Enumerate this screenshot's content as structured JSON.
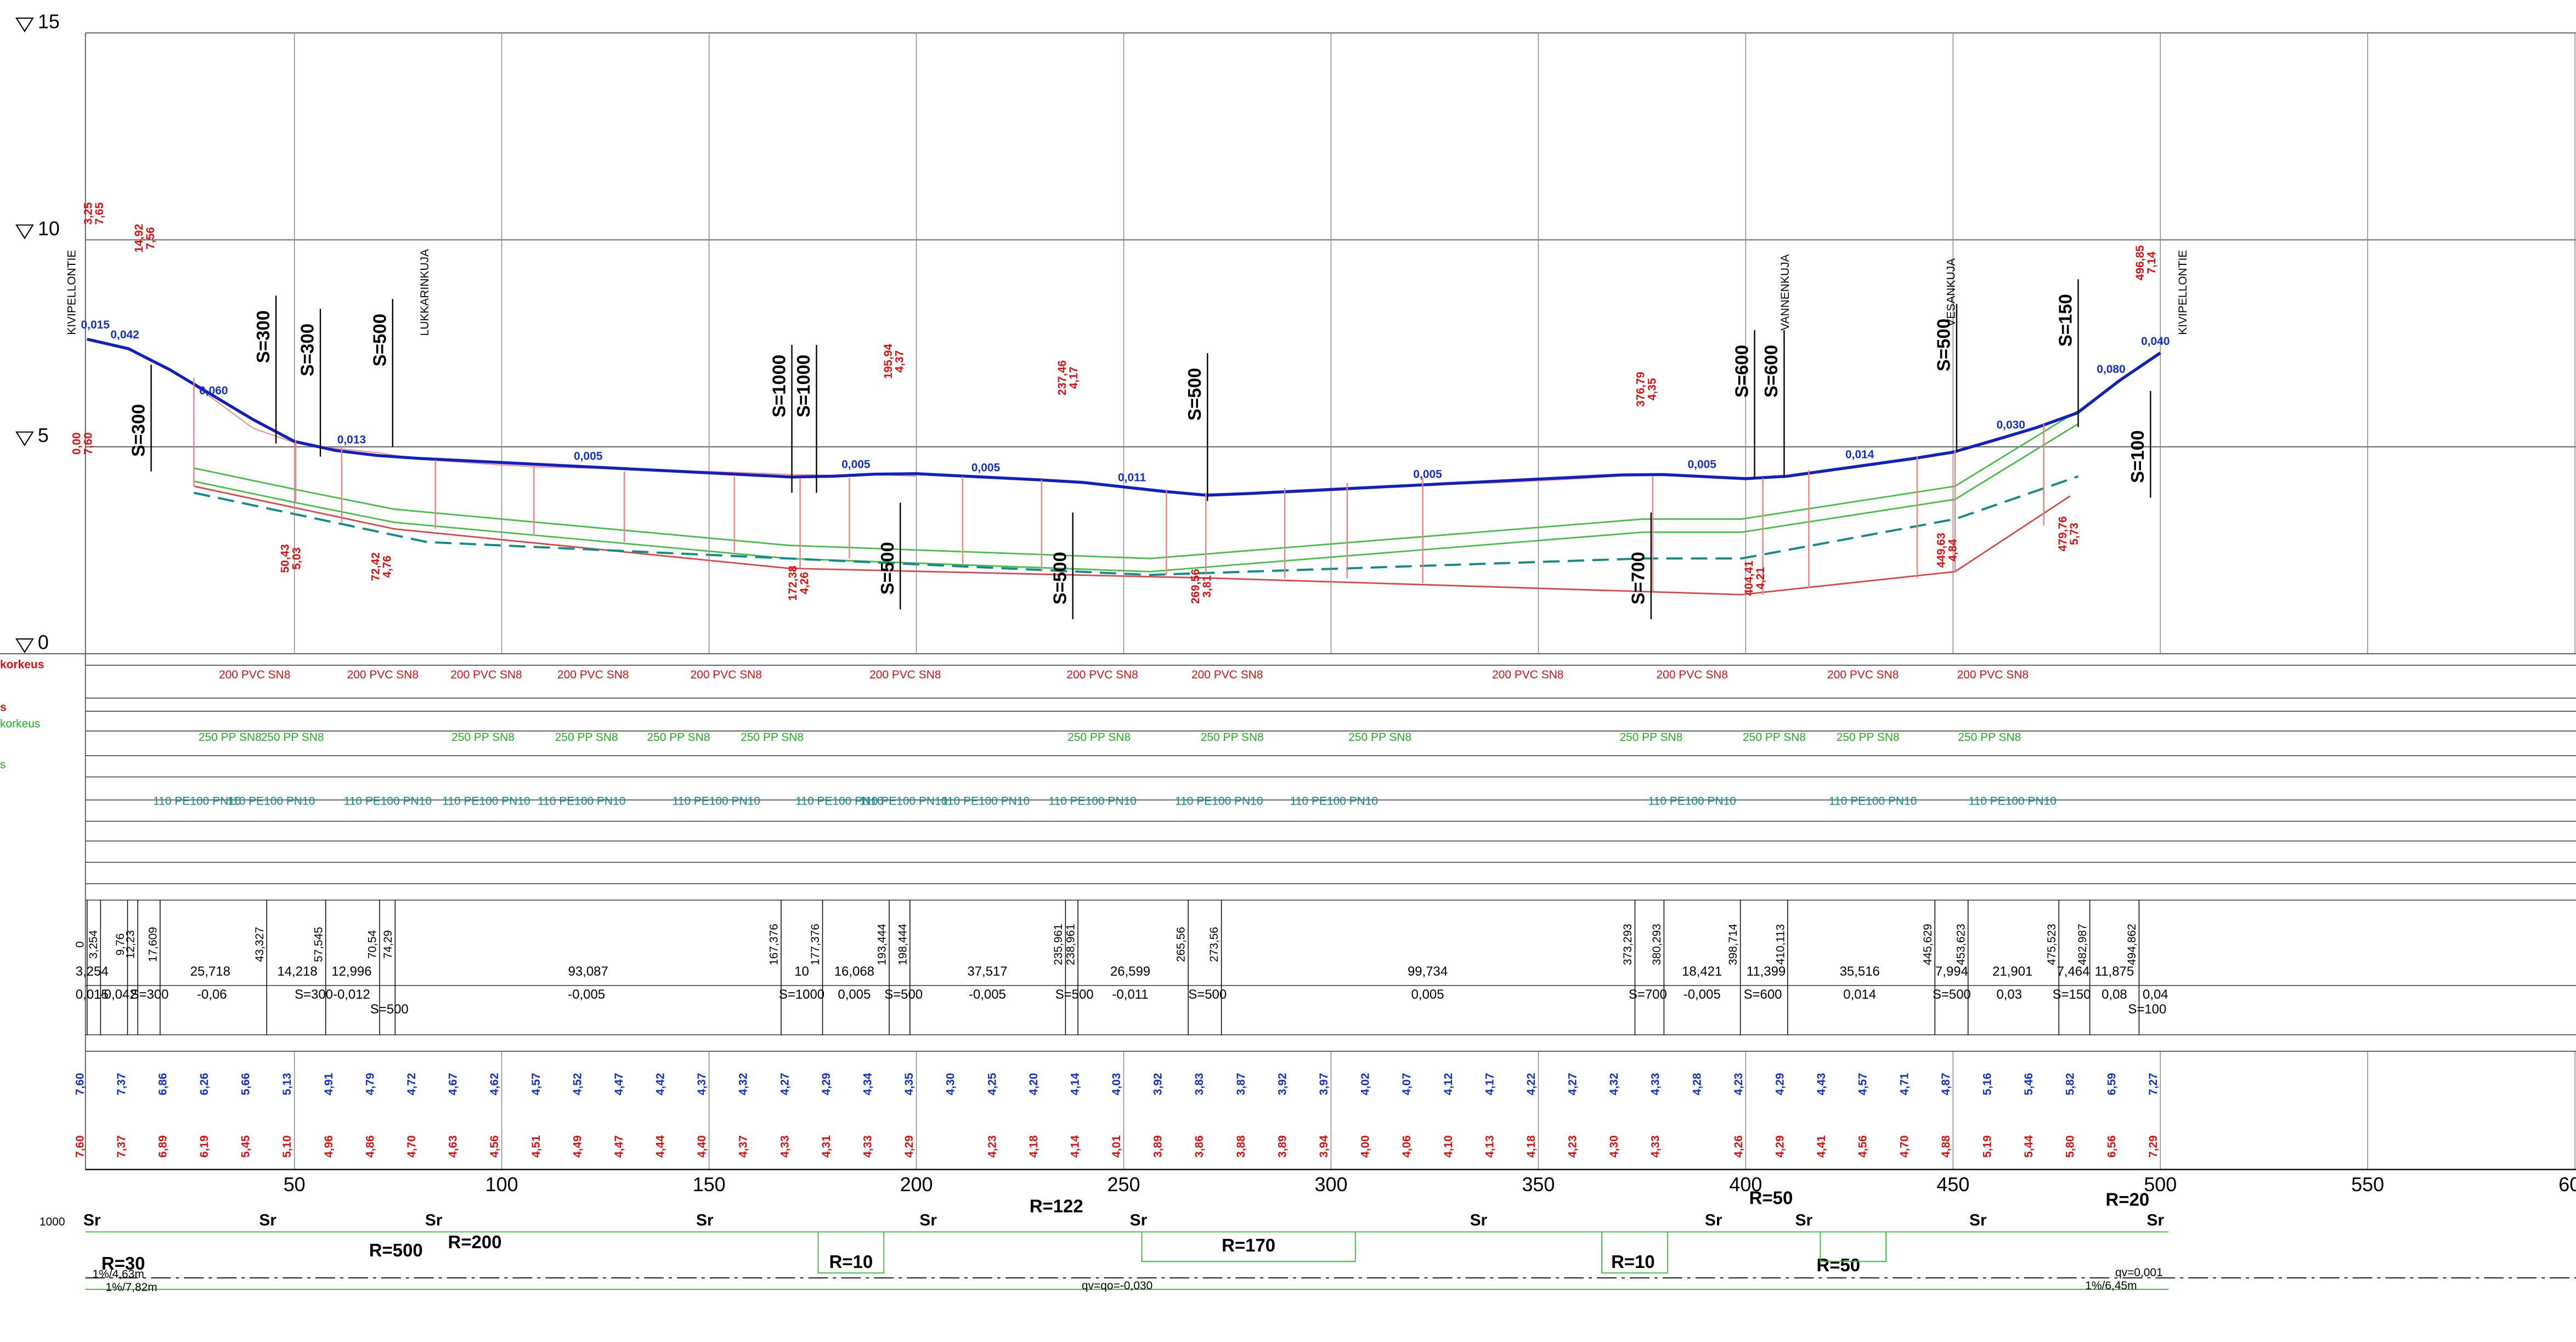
{
  "elevation_axis": {
    "ticks": [
      15,
      10,
      5,
      0
    ]
  },
  "chainage_axis": {
    "ticks": [
      50,
      100,
      150,
      200,
      250,
      300,
      350,
      400,
      450,
      500,
      550,
      600
    ]
  },
  "street_names": [
    "KIVIPELLONTIE",
    "LUKKARINKUJA",
    "VANNENKUJA",
    "VESANKUJA",
    "KIVIPELLONTIE"
  ],
  "grades": [
    "0,015",
    "0,042",
    "0,060",
    "0,013",
    "0,005",
    "0,005",
    "0,005",
    "0,011",
    "0,005",
    "0,005",
    "0,014",
    "0,030",
    "0,080",
    "0,040"
  ],
  "vertical_curves": [
    "S=300",
    "S=300",
    "S=300",
    "S=500",
    "S=1000",
    "S=1000",
    "S=500",
    "S=500",
    "S=500",
    "S=700",
    "S=600",
    "S=600",
    "S=500",
    "S=150",
    "S=100"
  ],
  "point_labels": [
    {
      "station": "3,25",
      "elevation": "7,65"
    },
    {
      "station": "14,92",
      "elevation": "7,56"
    },
    {
      "station": "195,94",
      "elevation": "4,37"
    },
    {
      "station": "237,46",
      "elevation": "4,17"
    },
    {
      "station": "376,79",
      "elevation": "4,35"
    },
    {
      "station": "496,85",
      "elevation": "7,14"
    },
    {
      "station": "0,00",
      "elevation": "7,60"
    },
    {
      "station": "50,43",
      "elevation": "5,03"
    },
    {
      "station": "72,42",
      "elevation": "4,76"
    },
    {
      "station": "172,38",
      "elevation": "4,26"
    },
    {
      "station": "269,56",
      "elevation": "3,81"
    },
    {
      "station": "404,41",
      "elevation": "4,21"
    },
    {
      "station": "449,63",
      "elevation": "4,84"
    },
    {
      "station": "479,76",
      "elevation": "5,73"
    }
  ],
  "row_labels": [
    "korkeus",
    "s",
    "korkeus",
    "s"
  ],
  "pipes": {
    "sewer": "200 PVC SN8",
    "storm": "250 PP SN8",
    "water": "110 PE100 PN10"
  },
  "table": {
    "stations": [
      "0",
      "3,254",
      "9,76",
      "12,23",
      "17,609",
      "43,327",
      "57,545",
      "70,54",
      "74,29",
      "167,376",
      "177,376",
      "193,444",
      "198,444",
      "235,961",
      "238,961",
      "265,56",
      "273,56",
      "373,293",
      "380,293",
      "398,714",
      "410,113",
      "445,629",
      "453,623",
      "475,523",
      "482,987",
      "494,862"
    ],
    "lengths": [
      "3,254",
      "25,718",
      "14,218",
      "12,996",
      "93,087",
      "10",
      "16,068",
      "37,517",
      "26,599",
      "99,734",
      "18,421",
      "11,399",
      "35,516",
      "7,994",
      "21,901",
      "7,464",
      "11,875"
    ],
    "grades": [
      "0,015",
      "-0,042",
      "-0,06",
      "-0,012",
      "-0,005",
      "0,005",
      "-0,005",
      "-0,011",
      "0,005",
      "-0,005",
      "0,014",
      "0,03",
      "0,08",
      "0,04"
    ],
    "curves": [
      "S=300",
      "S=300",
      "S=500",
      "S=1000",
      "S=500",
      "S=500",
      "S=500",
      "S=700",
      "S=600",
      "S=500",
      "S=150",
      "S=100"
    ]
  },
  "design_elevations": [
    "7,60",
    "7,37",
    "6,86",
    "6,26",
    "5,66",
    "5,13",
    "4,91",
    "4,79",
    "4,72",
    "4,67",
    "4,62",
    "4,57",
    "4,52",
    "4,47",
    "4,42",
    "4,37",
    "4,32",
    "4,27",
    "4,29",
    "4,34",
    "4,35",
    "4,30",
    "4,25",
    "4,20",
    "4,14",
    "4,03",
    "3,92",
    "3,83",
    "3,87",
    "3,92",
    "3,97",
    "4,02",
    "4,07",
    "4,12",
    "4,17",
    "4,22",
    "4,27",
    "4,32",
    "4,33",
    "4,28",
    "4,23",
    "4,29",
    "4,43",
    "4,57",
    "4,71",
    "4,87",
    "5,16",
    "5,46",
    "5,82",
    "6,59",
    "7,27"
  ],
  "ground_elevations": [
    "7,60",
    "7,37",
    "6,89",
    "6,19",
    "5,45",
    "5,10",
    "4,96",
    "4,86",
    "4,70",
    "4,63",
    "4,56",
    "4,51",
    "4,49",
    "4,47",
    "4,44",
    "4,40",
    "4,37",
    "4,33",
    "4,31",
    "4,33",
    "4,29",
    null,
    "4,23",
    "4,18",
    "4,14",
    "4,01",
    "3,89",
    "3,86",
    "3,88",
    "3,89",
    "3,94",
    "4,00",
    "4,06",
    "4,10",
    "4,13",
    "4,18",
    "4,23",
    "4,30",
    "4,33",
    null,
    "4,26",
    "4,29",
    "4,41",
    "4,56",
    "4,70",
    "4,88",
    "5,19",
    "5,44",
    "5,80",
    "6,56",
    "7,29"
  ],
  "alignment": {
    "straight": "Sr",
    "radii": [
      "R=30",
      "R=500",
      "R=200",
      "R=10",
      "R=122",
      "R=170",
      "R=10",
      "R=50",
      "R=50",
      "R=20"
    ],
    "notes": [
      "1000",
      "qv=qo=-0,030",
      "qv=0,001",
      "1%/4,63m",
      "1%/7,82m",
      "1%/6,45m"
    ]
  }
}
